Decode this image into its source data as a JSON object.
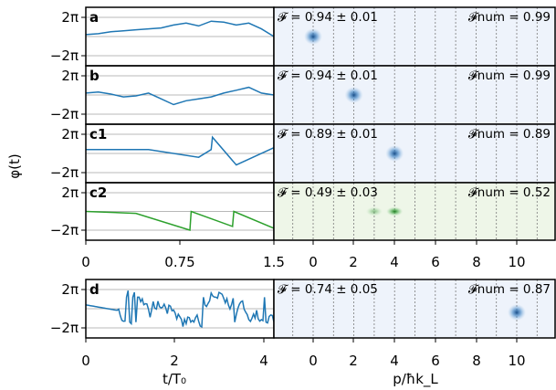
{
  "figure": {
    "ylabel": "φ(t)",
    "xlabel_left": "t/T₀",
    "xlabel_right": "p/ħk_L",
    "yticks": [
      "2π",
      "−2π"
    ]
  },
  "chart_data": [
    {
      "panel": "a",
      "type": "line",
      "color": "#1f77b4",
      "x": [
        0,
        0.1,
        0.2,
        0.3,
        0.4,
        0.5,
        0.6,
        0.7,
        0.8,
        0.9,
        1.0,
        1.1,
        1.2,
        1.3,
        1.4,
        1.5
      ],
      "y": [
        0.1,
        0.15,
        0.25,
        0.3,
        0.35,
        0.4,
        0.45,
        0.6,
        0.7,
        0.55,
        0.8,
        0.75,
        0.6,
        0.7,
        0.4,
        0.0
      ],
      "xlim": [
        0,
        1.5
      ],
      "ylim": [
        -1,
        1
      ],
      "annotation": "𝓕 = 0.94 ± 0.01",
      "annotation_num": "𝓕num = 0.99",
      "image": {
        "type": "scatter",
        "blobs": [
          {
            "p": 0,
            "intensity": 1.0
          }
        ],
        "background": "#eef3fb"
      }
    },
    {
      "panel": "b",
      "type": "line",
      "color": "#1f77b4",
      "x": [
        0,
        0.1,
        0.2,
        0.3,
        0.4,
        0.5,
        0.6,
        0.7,
        0.8,
        0.9,
        1.0,
        1.1,
        1.2,
        1.3,
        1.4,
        1.5
      ],
      "y": [
        0.1,
        0.15,
        0.05,
        -0.1,
        -0.05,
        0.1,
        -0.2,
        -0.5,
        -0.3,
        -0.2,
        -0.1,
        0.1,
        0.25,
        0.4,
        0.1,
        0.0
      ],
      "xlim": [
        0,
        1.5
      ],
      "ylim": [
        -1,
        1
      ],
      "annotation": "𝓕 = 0.94 ± 0.01",
      "annotation_num": "𝓕num = 0.99",
      "image": {
        "type": "scatter",
        "blobs": [
          {
            "p": 2,
            "intensity": 1.0
          }
        ],
        "background": "#eef3fb"
      }
    },
    {
      "panel": "c1",
      "type": "line",
      "color": "#1f77b4",
      "x": [
        0,
        0.5,
        0.9,
        1.0,
        1.01,
        1.2,
        1.5
      ],
      "y": [
        0.2,
        0.2,
        -0.2,
        0.2,
        0.85,
        -0.6,
        0.3
      ],
      "xlim": [
        0,
        1.5
      ],
      "ylim": [
        -1,
        1
      ],
      "annotation": "𝓕 = 0.89 ± 0.01",
      "annotation_num": "𝓕num = 0.89",
      "image": {
        "type": "scatter",
        "blobs": [
          {
            "p": 4,
            "intensity": 1.0
          }
        ],
        "background": "#eef3fb"
      }
    },
    {
      "panel": "c2",
      "type": "line",
      "color": "#2ca02c",
      "x": [
        0,
        0.4,
        0.83,
        0.84,
        1.17,
        1.18,
        1.5
      ],
      "y": [
        0.0,
        -0.1,
        -1.0,
        0.0,
        -0.8,
        0.0,
        -0.9
      ],
      "xlim": [
        0,
        1.5
      ],
      "ylim": [
        -1,
        1
      ],
      "annotation": "𝓕 = 0.49 ± 0.03",
      "annotation_num": "𝓕num = 0.52",
      "image": {
        "type": "scatter",
        "blobs": [
          {
            "p": 3,
            "intensity": 0.5
          },
          {
            "p": 4,
            "intensity": 1.0
          }
        ],
        "background": "#eef6e8"
      }
    },
    {
      "panel": "d",
      "type": "line",
      "color": "#1f77b4",
      "xlim": [
        0,
        4.3
      ],
      "ylim": [
        -1,
        1
      ],
      "annotation": "𝓕 = 0.74 ± 0.05",
      "annotation_num": "𝓕num = 0.87",
      "image": {
        "type": "scatter",
        "blobs": [
          {
            "p": 10,
            "intensity": 1.0
          }
        ],
        "background": "#eef3fb"
      }
    }
  ],
  "axes": {
    "left_ticks_top": [
      "0",
      "0.75",
      "1.5"
    ],
    "left_ticks_bottom": [
      "0",
      "2",
      "4"
    ],
    "right_ticks": [
      "0",
      "2",
      "4",
      "6",
      "8",
      "10"
    ],
    "right_ticks_bottom": [
      "0",
      "2",
      "4",
      "6",
      "8",
      "10"
    ]
  }
}
